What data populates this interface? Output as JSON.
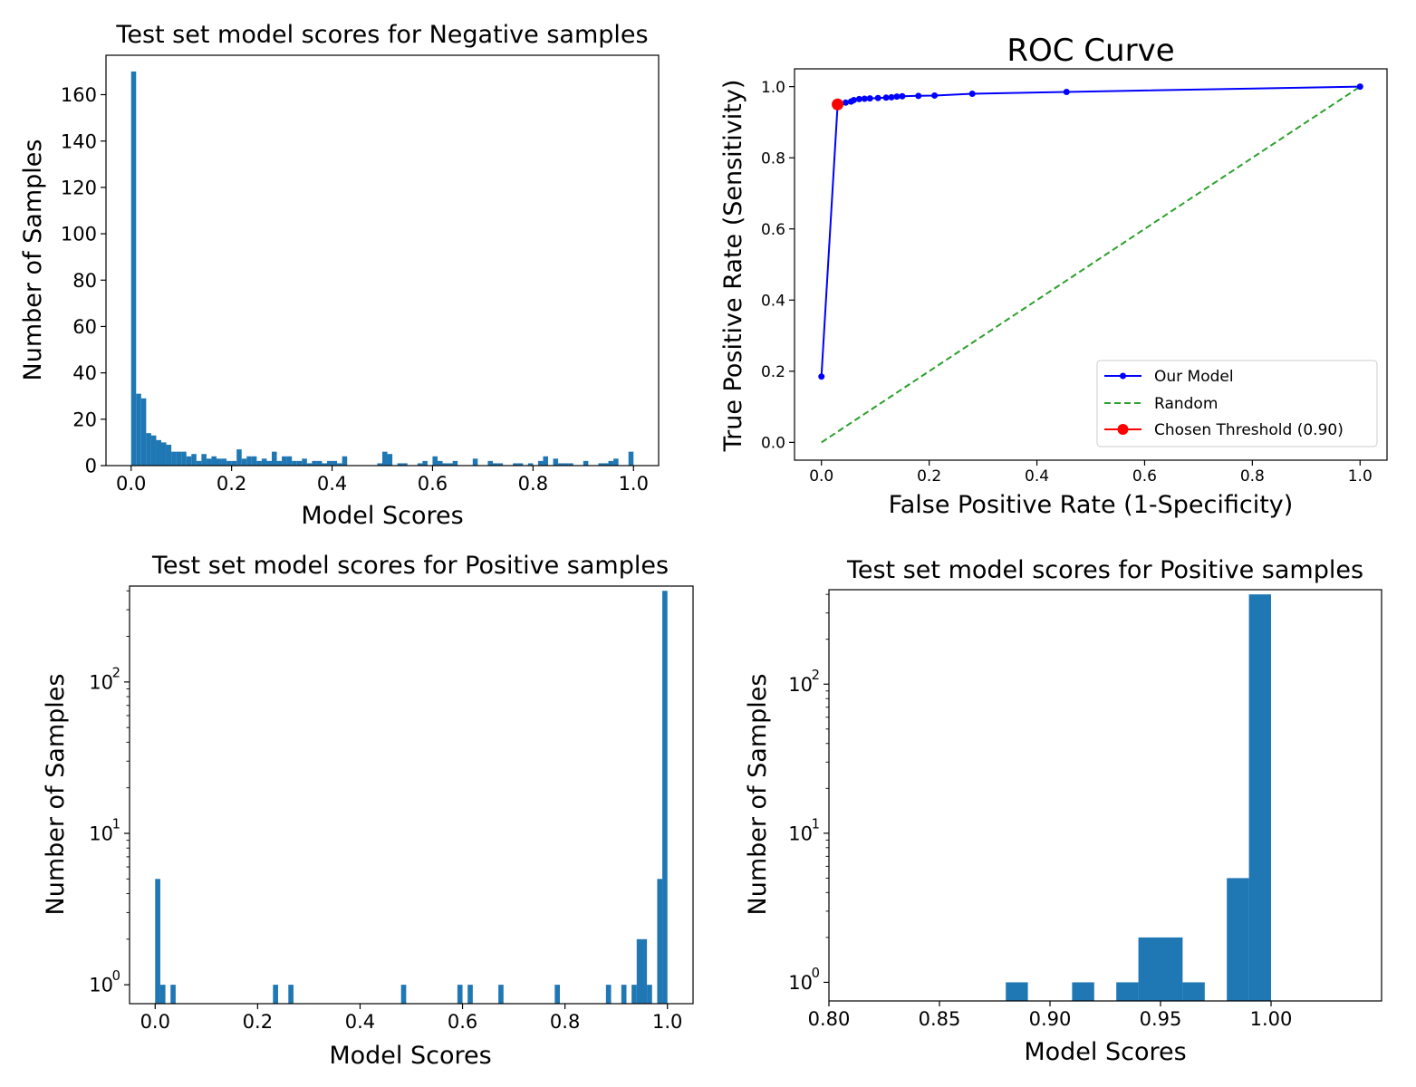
{
  "chart_data": [
    {
      "id": "neg",
      "type": "bar",
      "title": "Test set model scores for Negative samples",
      "xlabel": "Model Scores",
      "ylabel": "Number of Samples",
      "xlim": [
        -0.05,
        1.05
      ],
      "ylim": [
        0,
        177
      ],
      "yscale": "linear",
      "xticks": [
        0.0,
        0.2,
        0.4,
        0.6,
        0.8,
        1.0
      ],
      "xtick_labels": [
        "0.0",
        "0.2",
        "0.4",
        "0.6",
        "0.8",
        "1.0"
      ],
      "yticks": [
        0,
        20,
        40,
        60,
        80,
        100,
        120,
        140,
        160
      ],
      "ytick_labels": [
        "0",
        "20",
        "40",
        "60",
        "80",
        "100",
        "120",
        "140",
        "160"
      ],
      "bin_start": 0.0,
      "bin_width": 0.01,
      "values": [
        170,
        31,
        29,
        14,
        13,
        11,
        10,
        9,
        6,
        6,
        6,
        4,
        5,
        2,
        5,
        3,
        4,
        3,
        3,
        2,
        2,
        7,
        3,
        4,
        4,
        2,
        3,
        2,
        6,
        2,
        4,
        4,
        2,
        2,
        3,
        1,
        2,
        2,
        1,
        2,
        2,
        1,
        4,
        0,
        0,
        0,
        0,
        0,
        0,
        1,
        6,
        5,
        0,
        1,
        1,
        0,
        0,
        1,
        2,
        0,
        4,
        2,
        1,
        1,
        2,
        0,
        0,
        0,
        3,
        0,
        0,
        2,
        1,
        1,
        0,
        0,
        1,
        1,
        0,
        1,
        0,
        2,
        4,
        0,
        3,
        1,
        1,
        1,
        0,
        0,
        2,
        0,
        0,
        1,
        1,
        2,
        3,
        0,
        0,
        6
      ]
    },
    {
      "id": "roc",
      "type": "line",
      "title": "ROC Curve",
      "xlabel": "False Positive Rate (1-Specificity)",
      "ylabel": "True Positive Rate (Sensitivity)",
      "xlim": [
        -0.05,
        1.05
      ],
      "ylim": [
        -0.05,
        1.05
      ],
      "xticks": [
        0.0,
        0.2,
        0.4,
        0.6,
        0.8,
        1.0
      ],
      "xtick_labels": [
        "0.0",
        "0.2",
        "0.4",
        "0.6",
        "0.8",
        "1.0"
      ],
      "yticks": [
        0.0,
        0.2,
        0.4,
        0.6,
        0.8,
        1.0
      ],
      "ytick_labels": [
        "0.0",
        "0.2",
        "0.4",
        "0.6",
        "0.8",
        "1.0"
      ],
      "legend_position": "lower-right",
      "series": [
        {
          "name": "Our Model",
          "color": "#0000ff",
          "style": "solid-dots",
          "x": [
            0.0,
            0.03,
            0.045,
            0.055,
            0.06,
            0.07,
            0.08,
            0.09,
            0.105,
            0.12,
            0.13,
            0.14,
            0.15,
            0.18,
            0.21,
            0.28,
            0.455,
            1.0
          ],
          "y": [
            0.185,
            0.95,
            0.955,
            0.958,
            0.962,
            0.965,
            0.966,
            0.967,
            0.968,
            0.969,
            0.97,
            0.972,
            0.973,
            0.974,
            0.975,
            0.98,
            0.985,
            1.0
          ]
        },
        {
          "name": "Random",
          "color": "#2ca02c",
          "style": "dashed",
          "x": [
            0.0,
            1.0
          ],
          "y": [
            0.0,
            1.0
          ]
        },
        {
          "name": "Chosen Threshold (0.90)",
          "color": "#ff0000",
          "style": "marker",
          "x": [
            0.03
          ],
          "y": [
            0.95
          ]
        }
      ]
    },
    {
      "id": "pos",
      "type": "bar",
      "title": "Test set model scores for Positive samples",
      "xlabel": "Model Scores",
      "ylabel": "Number of Samples",
      "xlim": [
        -0.05,
        1.05
      ],
      "ylim": [
        0.75,
        430
      ],
      "yscale": "log",
      "xticks": [
        0.0,
        0.2,
        0.4,
        0.6,
        0.8,
        1.0
      ],
      "xtick_labels": [
        "0.0",
        "0.2",
        "0.4",
        "0.6",
        "0.8",
        "1.0"
      ],
      "yticks": [
        1,
        10,
        100
      ],
      "ytick_bases": [
        "10",
        "10",
        "10"
      ],
      "ytick_exps": [
        "0",
        "1",
        "2"
      ],
      "bins": [
        [
          0.0,
          0.01,
          5
        ],
        [
          0.01,
          0.02,
          1
        ],
        [
          0.03,
          0.04,
          1
        ],
        [
          0.23,
          0.24,
          1
        ],
        [
          0.26,
          0.27,
          1
        ],
        [
          0.48,
          0.49,
          1
        ],
        [
          0.59,
          0.6,
          1
        ],
        [
          0.61,
          0.62,
          1
        ],
        [
          0.67,
          0.68,
          1
        ],
        [
          0.78,
          0.79,
          1
        ],
        [
          0.88,
          0.89,
          1
        ],
        [
          0.91,
          0.92,
          1
        ],
        [
          0.93,
          0.94,
          1
        ],
        [
          0.94,
          0.96,
          2
        ],
        [
          0.96,
          0.97,
          1
        ],
        [
          0.98,
          0.99,
          5
        ],
        [
          0.99,
          1.0,
          400
        ]
      ]
    },
    {
      "id": "pos-zoom",
      "type": "bar",
      "title": "Test set model scores for Positive samples",
      "xlabel": "Model Scores",
      "ylabel": "Number of Samples",
      "xlim": [
        0.8,
        1.05
      ],
      "ylim": [
        0.75,
        430
      ],
      "yscale": "log",
      "xticks": [
        0.8,
        0.85,
        0.9,
        0.95,
        1.0
      ],
      "xtick_labels": [
        "0.80",
        "0.85",
        "0.90",
        "0.95",
        "1.00"
      ],
      "yticks": [
        1,
        10,
        100
      ],
      "ytick_bases": [
        "10",
        "10",
        "10"
      ],
      "ytick_exps": [
        "0",
        "1",
        "2"
      ],
      "bins": [
        [
          0.88,
          0.89,
          1
        ],
        [
          0.91,
          0.92,
          1
        ],
        [
          0.93,
          0.94,
          1
        ],
        [
          0.94,
          0.96,
          2
        ],
        [
          0.96,
          0.97,
          1
        ],
        [
          0.98,
          0.99,
          5
        ],
        [
          0.99,
          1.0,
          400
        ]
      ]
    }
  ]
}
